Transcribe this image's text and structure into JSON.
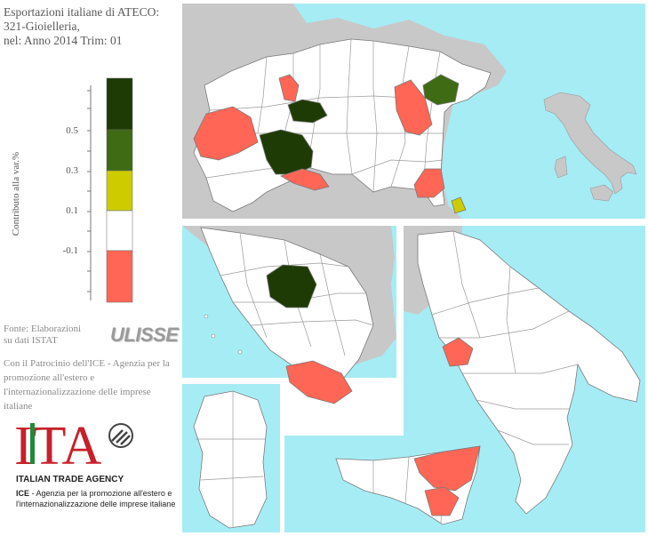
{
  "title": {
    "line1": "Esportazioni italiane di ATECO:",
    "line2": "321-Gioielleria,",
    "line3": "nel: Anno 2014 Trim: 01"
  },
  "legend": {
    "axis_label": "Contributo alla var.%",
    "ticks": [
      "0.5",
      "0.3",
      "0.1",
      "-0.1"
    ],
    "classes": [
      {
        "color": "#1e3b06"
      },
      {
        "color": "#3e6b14"
      },
      {
        "color": "#cccc00"
      },
      {
        "color": "#ffffff"
      },
      {
        "color": "#ff6655"
      }
    ]
  },
  "source": {
    "line1": "Fonte: Elaborazioni",
    "line2": "su dati ISTAT",
    "logo_text": "ULISSE"
  },
  "patron": {
    "line1": "Con il Patrocinio dell'ICE - Agenzia per la",
    "line2": "promozione all'estero e",
    "line3": "l'internazionalizzazione delle imprese",
    "line4": "italiane"
  },
  "ita_logo": {
    "letters": "ITA",
    "name": "ITALIAN TRADE AGENCY",
    "acronym": "ICE",
    "full_line1": " - Agenzia per la promozione all'estero e",
    "full_line2": "l'internazionalizzazione delle imprese italiane"
  },
  "colors": {
    "sea": "#a6ecf5",
    "land_other": "#c8c8c8",
    "province_default": "#ffffff",
    "border": "#7a7a7a",
    "negative": "#ff6655",
    "high": "#1e3b06",
    "mid": "#3e6b14",
    "low": "#cccc00"
  }
}
